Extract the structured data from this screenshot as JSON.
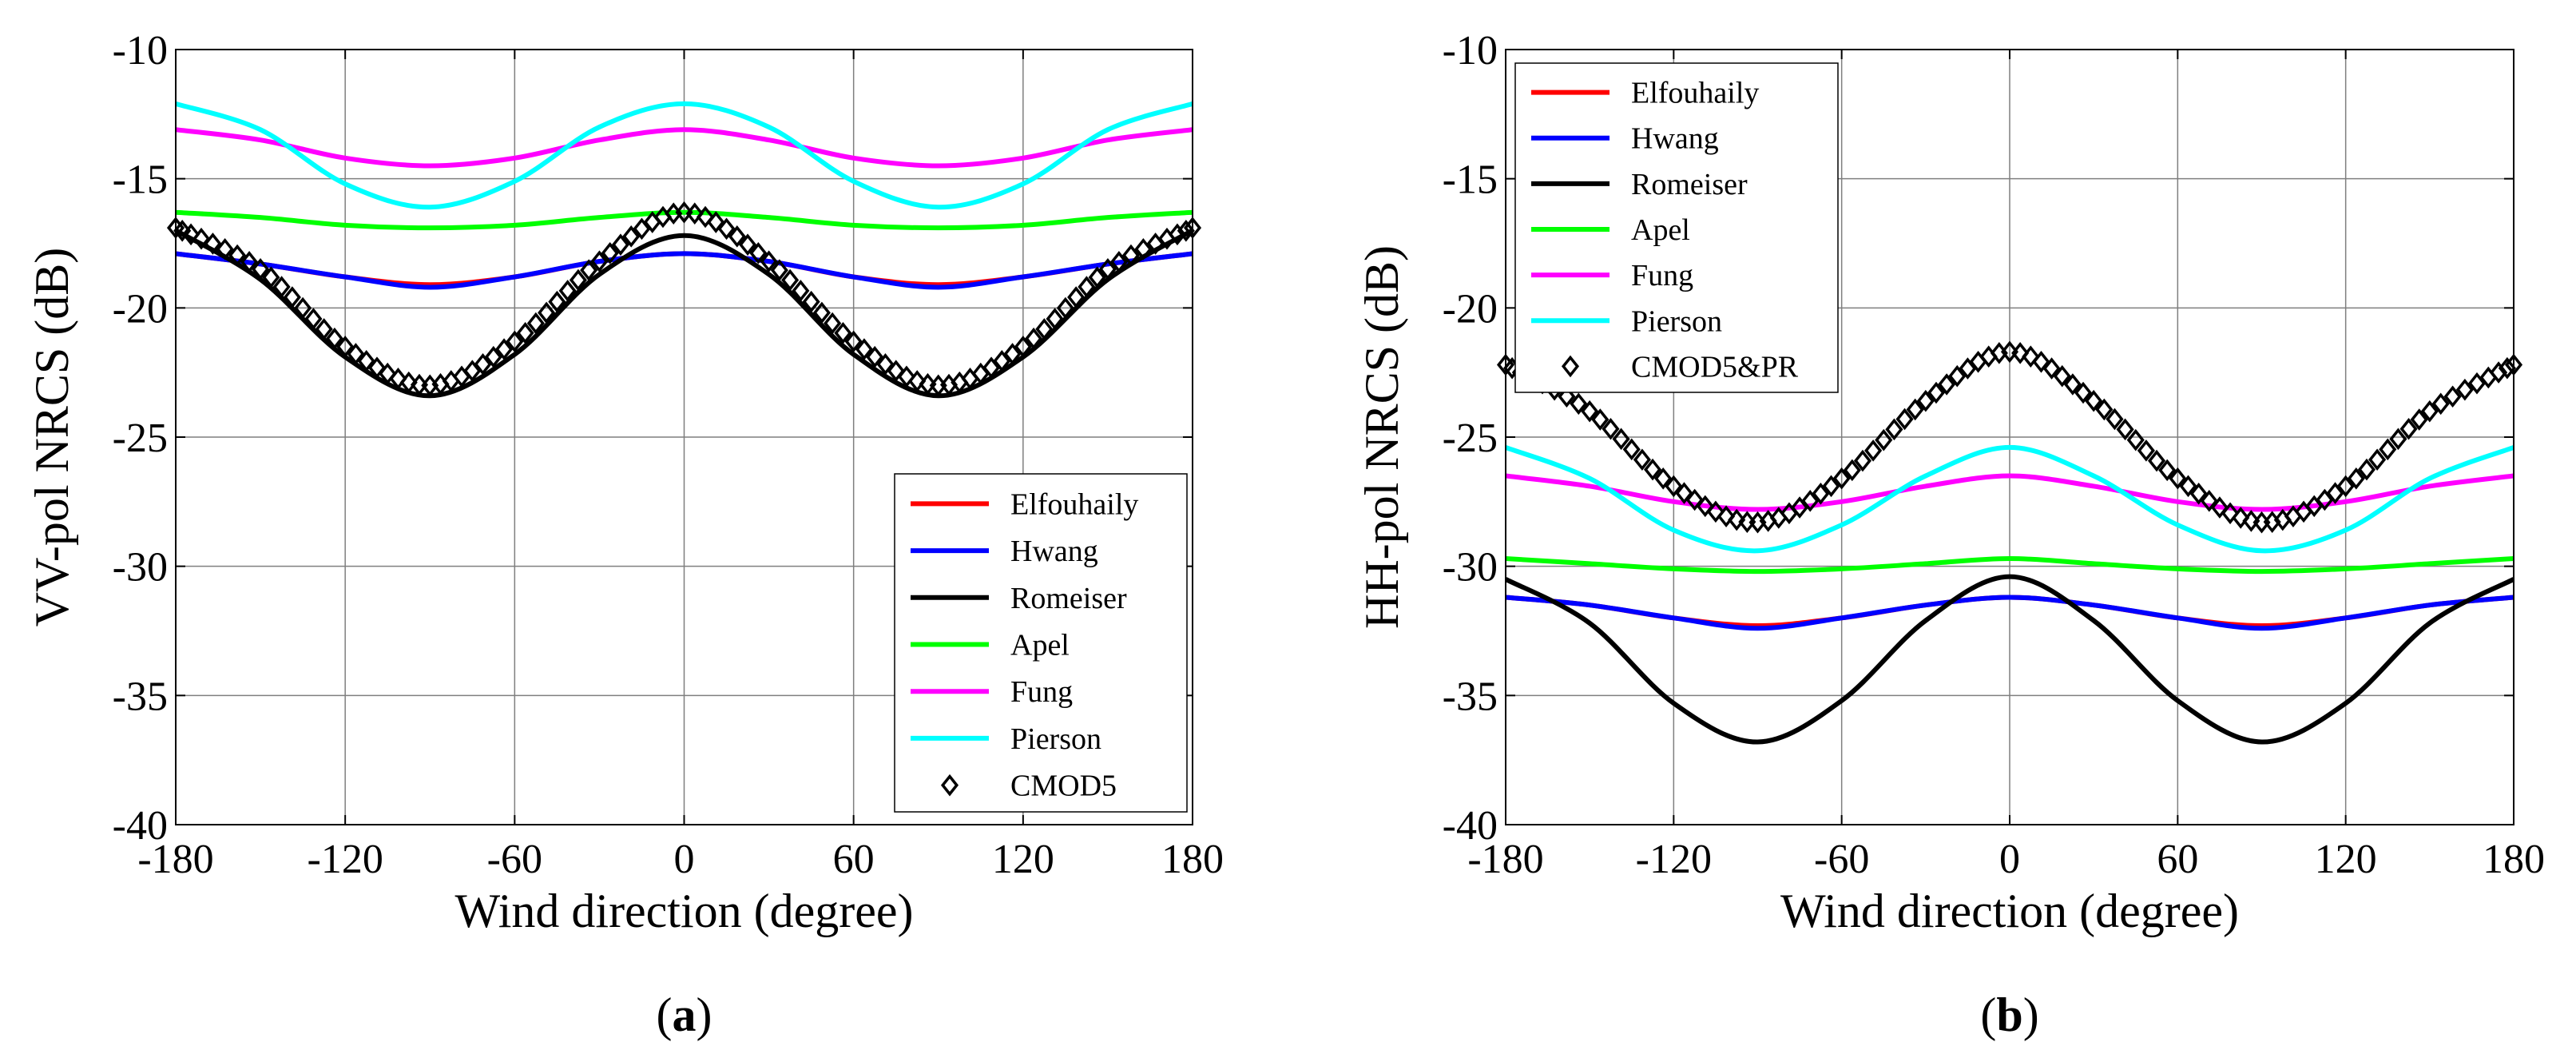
{
  "chart_data": [
    {
      "type": "line",
      "panel_label": "(a)",
      "xlabel": "Wind direction (degree)",
      "ylabel": "VV-pol NRCS (dB)",
      "xlim": [
        -180,
        180
      ],
      "ylim": [
        -40,
        -10
      ],
      "xticks": [
        -180,
        -120,
        -60,
        0,
        60,
        120,
        180
      ],
      "yticks": [
        -10,
        -15,
        -20,
        -25,
        -30,
        -35,
        -40
      ],
      "grid": true,
      "legend_position": "bottom-right",
      "x": [
        -180,
        -150,
        -120,
        -90,
        -60,
        -30,
        0,
        30,
        60,
        90,
        120,
        150,
        180
      ],
      "series": [
        {
          "name": "Elfouhaily",
          "color": "#ff0000",
          "marker": "line",
          "values": [
            -17.9,
            -18.3,
            -18.8,
            -19.1,
            -18.8,
            -18.2,
            -17.9,
            -18.2,
            -18.8,
            -19.1,
            -18.8,
            -18.3,
            -17.9
          ]
        },
        {
          "name": "Hwang",
          "color": "#0000ff",
          "marker": "line",
          "values": [
            -17.9,
            -18.3,
            -18.8,
            -19.2,
            -18.8,
            -18.2,
            -17.9,
            -18.2,
            -18.8,
            -19.2,
            -18.8,
            -18.3,
            -17.9
          ]
        },
        {
          "name": "Romeiser",
          "color": "#000000",
          "marker": "line",
          "values": [
            -17.0,
            -18.9,
            -21.9,
            -23.4,
            -21.8,
            -18.7,
            -17.2,
            -18.7,
            -21.8,
            -23.4,
            -21.9,
            -18.9,
            -17.0
          ]
        },
        {
          "name": "Apel",
          "color": "#00ff00",
          "marker": "line",
          "values": [
            -16.3,
            -16.5,
            -16.8,
            -16.9,
            -16.8,
            -16.5,
            -16.3,
            -16.5,
            -16.8,
            -16.9,
            -16.8,
            -16.5,
            -16.3
          ]
        },
        {
          "name": "Fung",
          "color": "#ff00ff",
          "marker": "line",
          "values": [
            -13.1,
            -13.5,
            -14.2,
            -14.5,
            -14.2,
            -13.5,
            -13.1,
            -13.5,
            -14.2,
            -14.5,
            -14.2,
            -13.5,
            -13.1
          ]
        },
        {
          "name": "Pierson",
          "color": "#00ffff",
          "marker": "line",
          "values": [
            -12.1,
            -13.1,
            -15.2,
            -16.1,
            -15.1,
            -13.0,
            -12.1,
            -13.0,
            -15.1,
            -16.1,
            -15.2,
            -13.1,
            -12.1
          ]
        },
        {
          "name": "CMOD5",
          "color": "#000000",
          "marker": "diamond",
          "values": [
            -16.9,
            -18.5,
            -21.5,
            -23.0,
            -21.3,
            -18.2,
            -16.3,
            -18.2,
            -21.3,
            -23.0,
            -21.5,
            -18.5,
            -16.9
          ]
        }
      ]
    },
    {
      "type": "line",
      "panel_label": "(b)",
      "xlabel": "Wind direction (degree)",
      "ylabel": "HH-pol NRCS (dB)",
      "xlim": [
        -180,
        180
      ],
      "ylim": [
        -40,
        -10
      ],
      "xticks": [
        -180,
        -120,
        -60,
        0,
        60,
        120,
        180
      ],
      "yticks": [
        -10,
        -15,
        -20,
        -25,
        -30,
        -35,
        -40
      ],
      "grid": true,
      "legend_position": "top-left",
      "x": [
        -180,
        -150,
        -120,
        -90,
        -60,
        -30,
        0,
        30,
        60,
        90,
        120,
        150,
        180
      ],
      "series": [
        {
          "name": "Elfouhaily",
          "color": "#ff0000",
          "marker": "line",
          "values": [
            -31.2,
            -31.5,
            -32.0,
            -32.3,
            -32.0,
            -31.5,
            -31.2,
            -31.5,
            -32.0,
            -32.3,
            -32.0,
            -31.5,
            -31.2
          ]
        },
        {
          "name": "Hwang",
          "color": "#0000ff",
          "marker": "line",
          "values": [
            -31.2,
            -31.5,
            -32.0,
            -32.4,
            -32.0,
            -31.5,
            -31.2,
            -31.5,
            -32.0,
            -32.4,
            -32.0,
            -31.5,
            -31.2
          ]
        },
        {
          "name": "Romeiser",
          "color": "#000000",
          "marker": "line",
          "values": [
            -30.5,
            -32.2,
            -35.3,
            -36.8,
            -35.2,
            -32.1,
            -30.4,
            -32.1,
            -35.2,
            -36.8,
            -35.3,
            -32.2,
            -30.5
          ]
        },
        {
          "name": "Apel",
          "color": "#00ff00",
          "marker": "line",
          "values": [
            -29.7,
            -29.9,
            -30.1,
            -30.2,
            -30.1,
            -29.9,
            -29.7,
            -29.9,
            -30.1,
            -30.2,
            -30.1,
            -29.9,
            -29.7
          ]
        },
        {
          "name": "Fung",
          "color": "#ff00ff",
          "marker": "line",
          "values": [
            -26.5,
            -26.9,
            -27.5,
            -27.8,
            -27.5,
            -26.9,
            -26.5,
            -26.9,
            -27.5,
            -27.8,
            -27.5,
            -26.9,
            -26.5
          ]
        },
        {
          "name": "Pierson",
          "color": "#00ffff",
          "marker": "line",
          "values": [
            -25.4,
            -26.6,
            -28.6,
            -29.4,
            -28.4,
            -26.5,
            -25.4,
            -26.5,
            -28.4,
            -29.4,
            -28.6,
            -26.6,
            -25.4
          ]
        },
        {
          "name": "CMOD5&PR",
          "color": "#000000",
          "marker": "diamond",
          "values": [
            -22.2,
            -24.0,
            -26.9,
            -28.3,
            -26.6,
            -23.6,
            -21.7,
            -23.6,
            -26.6,
            -28.3,
            -26.9,
            -24.0,
            -22.2
          ]
        }
      ]
    }
  ]
}
